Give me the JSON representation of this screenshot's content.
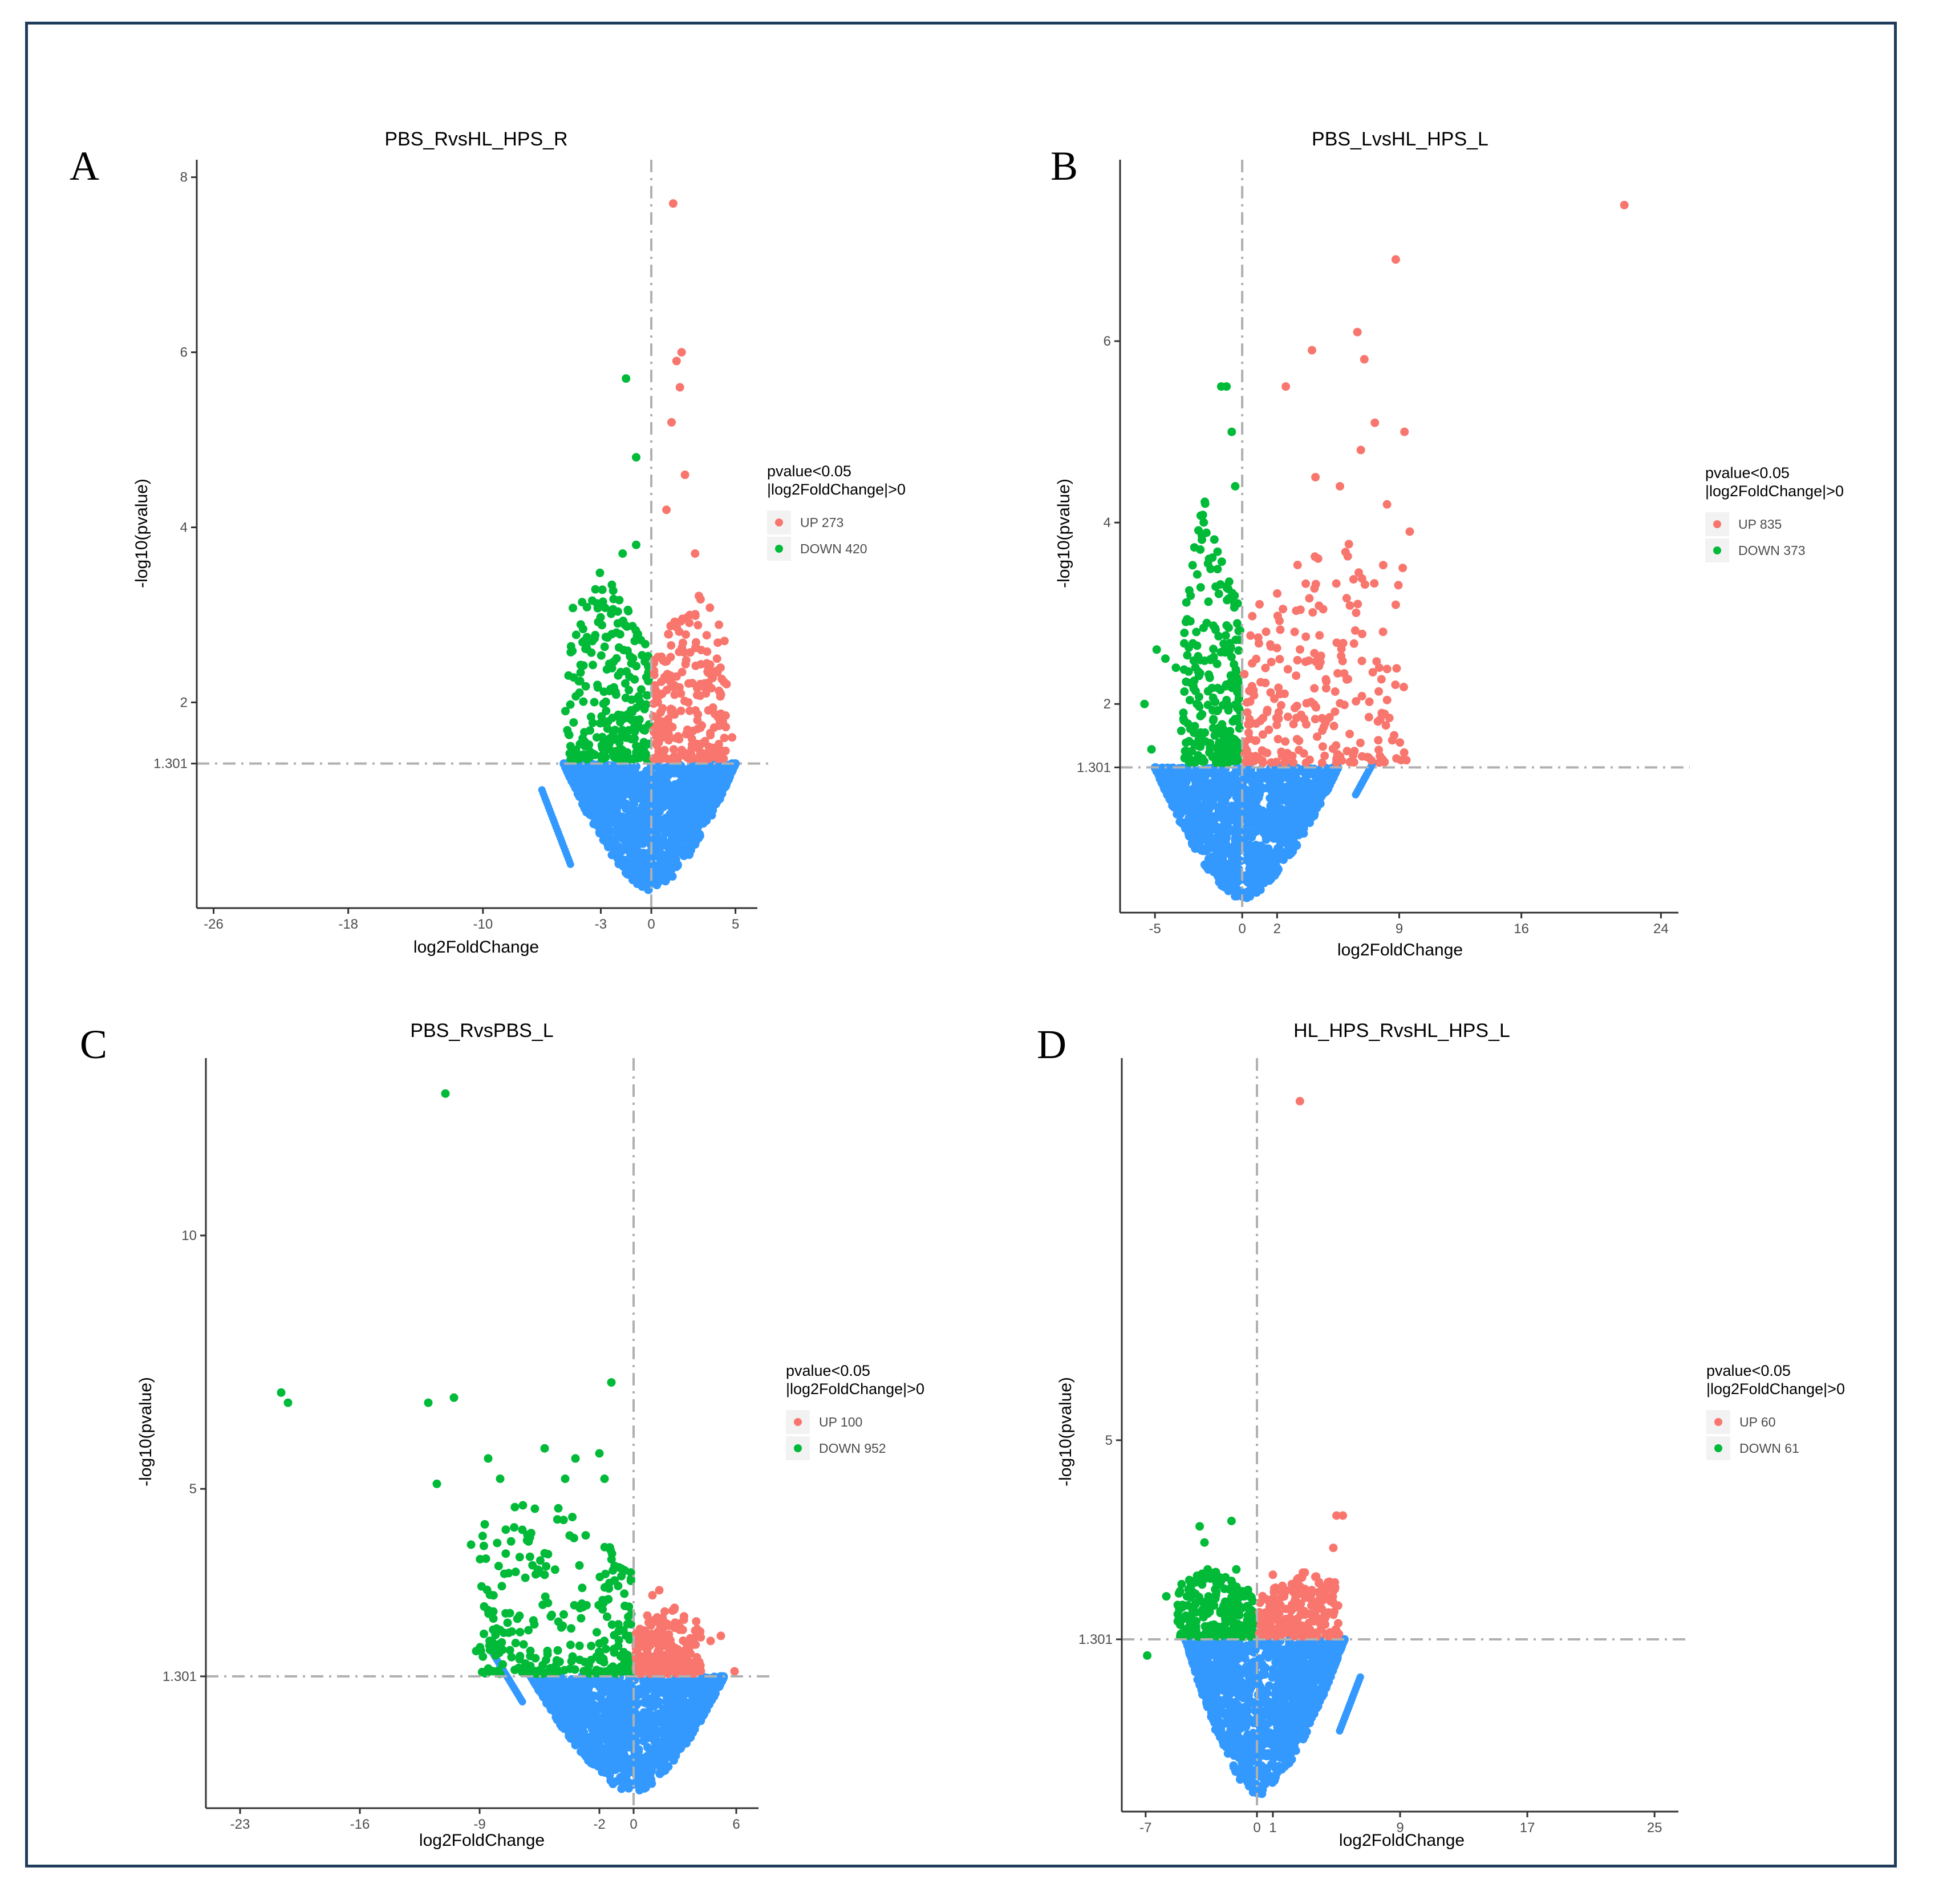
{
  "colors": {
    "up": "#f8766d",
    "down": "#00ba38",
    "ns": "#3399ff",
    "frame": "#1f3d5a"
  },
  "chart_data": [
    {
      "type": "scatter",
      "panel": "A",
      "title": "PBS_RvsHL_HPS_R",
      "xlabel": "log2FoldChange",
      "ylabel": "-log10(pvalue)",
      "xlim": [
        -27,
        6.3
      ],
      "ylim": [
        -0.35,
        8.2
      ],
      "xticks": [
        -26,
        -18,
        -10,
        -3,
        0,
        5
      ],
      "yticks": [
        1.301,
        2,
        4,
        6,
        8
      ],
      "threshold_y": 1.301,
      "threshold_x": 0,
      "legend": {
        "title": [
          "pvalue<0.05",
          "|log2FoldChange|>0"
        ],
        "up_label": "UP 273",
        "down_label": "DOWN 420"
      },
      "cloud": {
        "xmin": -5.2,
        "xmax": 5.0,
        "ymin": -0.15,
        "outlier_line": [
          [
            -6.5,
            1.0
          ],
          [
            -4.8,
            0.15
          ]
        ]
      },
      "up_points": [
        [
          1.3,
          7.7
        ],
        [
          1.8,
          6.0
        ],
        [
          1.5,
          5.9
        ],
        [
          1.7,
          5.6
        ],
        [
          1.2,
          5.2
        ],
        [
          2.0,
          4.6
        ],
        [
          0.9,
          4.2
        ],
        [
          2.6,
          3.7
        ],
        [
          3.9,
          2.5
        ],
        [
          3.3,
          2.2
        ],
        [
          2.2,
          2.0
        ],
        [
          4.8,
          1.6
        ],
        [
          3.2,
          1.4
        ]
      ],
      "down_points": [
        [
          -1.5,
          5.7
        ],
        [
          -0.9,
          4.8
        ],
        [
          -1.7,
          3.7
        ],
        [
          -0.9,
          3.8
        ],
        [
          -4.0,
          2.7
        ],
        [
          -3.5,
          2.7
        ],
        [
          -5.1,
          1.9
        ],
        [
          -4.8,
          1.5
        ],
        [
          -2.6,
          1.7
        ],
        [
          -3.2,
          2.2
        ]
      ],
      "up_cloud": {
        "xmax": 4.5,
        "ymax": 3.3
      },
      "down_cloud": {
        "xmin": -5.0,
        "ymax": 3.5
      }
    },
    {
      "type": "scatter",
      "panel": "B",
      "title": "PBS_LvsHL_HPS_L",
      "xlabel": "log2FoldChange",
      "ylabel": "-log10(pvalue)",
      "xlim": [
        -7,
        25
      ],
      "ylim": [
        -0.3,
        8.0
      ],
      "xticks": [
        -5,
        0,
        2,
        9,
        16,
        24
      ],
      "yticks": [
        1.301,
        2,
        4,
        6
      ],
      "threshold_y": 1.301,
      "threshold_x": 0,
      "legend": {
        "title": [
          "pvalue<0.05",
          "|log2FoldChange|>0"
        ],
        "up_label": "UP 835",
        "down_label": "DOWN 373"
      },
      "cloud": {
        "xmin": -5.0,
        "xmax": 5.5,
        "ymin": -0.15,
        "outlier_line": [
          [
            6.5,
            1.0
          ],
          [
            7.5,
            1.35
          ]
        ]
      },
      "up_points": [
        [
          21.9,
          7.5
        ],
        [
          8.8,
          6.9
        ],
        [
          6.6,
          6.1
        ],
        [
          4.0,
          5.9
        ],
        [
          7.0,
          5.8
        ],
        [
          2.5,
          5.5
        ],
        [
          9.3,
          5.0
        ],
        [
          7.6,
          5.1
        ],
        [
          6.8,
          4.8
        ],
        [
          8.3,
          4.2
        ],
        [
          9.6,
          3.9
        ],
        [
          9.2,
          3.5
        ],
        [
          4.2,
          4.5
        ],
        [
          5.6,
          4.4
        ],
        [
          8.6,
          1.6
        ],
        [
          7.8,
          1.6
        ],
        [
          8.0,
          1.9
        ]
      ],
      "down_points": [
        [
          -0.9,
          5.5
        ],
        [
          -1.2,
          5.5
        ],
        [
          -0.6,
          5.0
        ],
        [
          -0.4,
          4.4
        ],
        [
          -5.6,
          2.0
        ],
        [
          -4.9,
          2.6
        ],
        [
          -4.4,
          2.5
        ],
        [
          -3.8,
          2.4
        ],
        [
          -2.8,
          2.2
        ],
        [
          -5.2,
          1.5
        ],
        [
          -1.9,
          3.6
        ],
        [
          -2.6,
          2.0
        ]
      ],
      "up_cloud": {
        "xmax": 9.5,
        "ymax": 4.0
      },
      "down_cloud": {
        "xmin": -3.5,
        "ymax": 4.2
      }
    },
    {
      "type": "scatter",
      "panel": "C",
      "title": "PBS_RvsPBS_L",
      "xlabel": "log2FoldChange",
      "ylabel": "-log10(pvalue)",
      "xlim": [
        -25,
        7.3
      ],
      "ylim": [
        -1.3,
        13.5
      ],
      "xticks": [
        -23,
        -16,
        -9,
        -2,
        0,
        6
      ],
      "yticks": [
        1.301,
        5,
        10
      ],
      "threshold_y": 1.301,
      "threshold_x": 0,
      "legend": {
        "title": [
          "pvalue<0.05",
          "|log2FoldChange|>0"
        ],
        "up_label": "UP 100",
        "down_label": "DOWN 952"
      },
      "cloud": {
        "xmin": -6.0,
        "xmax": 5.3,
        "ymin": -1.0,
        "outlier_line": [
          [
            -8.3,
            1.8
          ],
          [
            -6.5,
            0.8
          ]
        ]
      },
      "up_points": [
        [
          1.5,
          3.0
        ],
        [
          1.1,
          2.9
        ],
        [
          4.5,
          2.0
        ],
        [
          5.1,
          2.1
        ],
        [
          0.8,
          2.5
        ],
        [
          2.2,
          1.8
        ],
        [
          3.8,
          1.5
        ],
        [
          5.9,
          1.4
        ]
      ],
      "down_points": [
        [
          -11.0,
          12.8
        ],
        [
          -1.3,
          7.1
        ],
        [
          -20.6,
          6.9
        ],
        [
          -20.2,
          6.7
        ],
        [
          -12.0,
          6.7
        ],
        [
          -10.5,
          6.8
        ],
        [
          -5.2,
          5.8
        ],
        [
          -8.5,
          5.6
        ],
        [
          -3.4,
          5.6
        ],
        [
          -2.0,
          5.7
        ],
        [
          -4.0,
          5.2
        ],
        [
          -11.5,
          5.1
        ],
        [
          -7.8,
          5.2
        ],
        [
          -9.5,
          3.9
        ],
        [
          -9.2,
          1.8
        ],
        [
          -8.7,
          4.3
        ],
        [
          -1.7,
          5.2
        ]
      ],
      "up_cloud": {
        "xmax": 4.0,
        "ymax": 2.7
      },
      "down_cloud": {
        "xmin": -9.0,
        "ymax": 5.0
      }
    },
    {
      "type": "scatter",
      "panel": "D",
      "title": "HL_HPS_RvsHL_HPS_L",
      "xlabel": "log2FoldChange",
      "ylabel": "-log10(pvalue)",
      "xlim": [
        -8.5,
        26.5
      ],
      "ylim": [
        -1.9,
        12.1
      ],
      "xticks": [
        -7,
        0,
        1,
        9,
        17,
        25
      ],
      "yticks": [
        1.301,
        5
      ],
      "threshold_y": 1.301,
      "threshold_x": 0,
      "legend": {
        "title": [
          "pvalue<0.05",
          "|log2FoldChange|>0"
        ],
        "up_label": "UP 60",
        "down_label": "DOWN 61"
      },
      "cloud": {
        "xmin": -4.5,
        "xmax": 5.5,
        "ymin": -1.6,
        "outlier_line": [
          [
            5.2,
            -0.4
          ],
          [
            6.5,
            0.6
          ]
        ]
      },
      "up_points": [
        [
          2.7,
          11.3
        ],
        [
          5.4,
          3.6
        ],
        [
          5.0,
          3.6
        ],
        [
          4.8,
          3.0
        ],
        [
          1.0,
          2.5
        ],
        [
          2.3,
          2.2
        ],
        [
          3.0,
          2.1
        ],
        [
          0.6,
          1.6
        ],
        [
          4.5,
          1.8
        ]
      ],
      "down_points": [
        [
          -3.6,
          3.4
        ],
        [
          -1.6,
          3.5
        ],
        [
          -3.3,
          3.1
        ],
        [
          -3.1,
          2.6
        ],
        [
          -2.5,
          2.3
        ],
        [
          -1.3,
          2.6
        ],
        [
          -5.7,
          2.1
        ],
        [
          -4.4,
          2.1
        ],
        [
          -2.0,
          2.0
        ],
        [
          -6.9,
          1.0
        ]
      ],
      "up_cloud": {
        "xmax": 5.2,
        "ymax": 2.6
      },
      "down_cloud": {
        "xmin": -5.0,
        "ymax": 2.6
      }
    }
  ]
}
